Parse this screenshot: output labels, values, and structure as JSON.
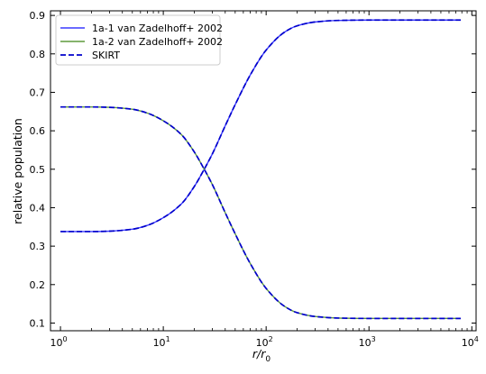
{
  "chart_data": {
    "type": "line",
    "xlabel": "r/r",
    "xlabel_sub": "0",
    "ylabel": "relative population",
    "xscale": "log",
    "xlim": [
      0.8,
      11000
    ],
    "ylim": [
      0.08,
      0.912
    ],
    "xticks": [
      {
        "value": 1,
        "base": "10",
        "exp": "0"
      },
      {
        "value": 10,
        "base": "10",
        "exp": "1"
      },
      {
        "value": 100,
        "base": "10",
        "exp": "2"
      },
      {
        "value": 1000,
        "base": "10",
        "exp": "3"
      },
      {
        "value": 10000,
        "base": "10",
        "exp": "4"
      }
    ],
    "yticks": [
      "0.1",
      "0.2",
      "0.3",
      "0.4",
      "0.5",
      "0.6",
      "0.7",
      "0.8",
      "0.9"
    ],
    "legend_position": "top-left",
    "x": [
      1,
      2,
      3,
      5,
      7,
      10,
      15,
      20,
      25,
      30,
      40,
      50,
      70,
      100,
      150,
      200,
      300,
      500,
      1000,
      3000,
      7800
    ],
    "series": [
      {
        "name": "1a-1 van Zadelhoff+ 2002",
        "color": "#3a3aff",
        "style": "solid",
        "values": [
          0.338,
          0.338,
          0.339,
          0.344,
          0.354,
          0.374,
          0.41,
          0.455,
          0.5,
          0.54,
          0.613,
          0.668,
          0.745,
          0.81,
          0.856,
          0.873,
          0.883,
          0.887,
          0.888,
          0.888,
          0.888
        ]
      },
      {
        "name": "1a-2 van Zadelhoff+ 2002",
        "color": "#5e9a3c",
        "style": "solid",
        "values": [
          0.662,
          0.662,
          0.661,
          0.656,
          0.646,
          0.626,
          0.59,
          0.545,
          0.5,
          0.46,
          0.387,
          0.332,
          0.255,
          0.19,
          0.144,
          0.127,
          0.117,
          0.113,
          0.112,
          0.112,
          0.112
        ]
      },
      {
        "name": "SKIRT",
        "color": "#0000cc",
        "style": "dashed",
        "values": [
          0.338,
          0.338,
          0.339,
          0.344,
          0.354,
          0.374,
          0.41,
          0.455,
          0.5,
          0.54,
          0.613,
          0.668,
          0.745,
          0.81,
          0.856,
          0.873,
          0.883,
          0.887,
          0.888,
          0.888,
          0.888
        ]
      },
      {
        "name": "",
        "color": "#0000cc",
        "style": "dashed",
        "values": [
          0.662,
          0.662,
          0.661,
          0.656,
          0.646,
          0.626,
          0.59,
          0.545,
          0.5,
          0.46,
          0.387,
          0.332,
          0.255,
          0.19,
          0.144,
          0.127,
          0.117,
          0.113,
          0.112,
          0.112,
          0.112
        ]
      }
    ]
  }
}
